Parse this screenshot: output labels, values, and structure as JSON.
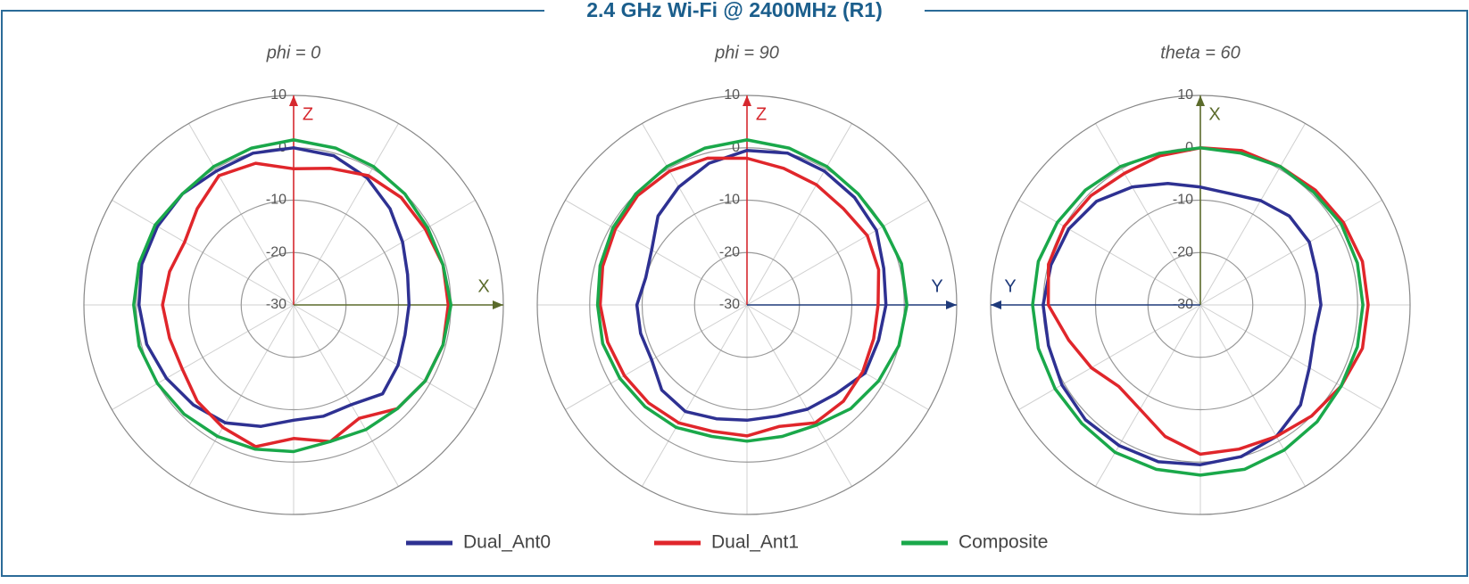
{
  "title": "2.4 GHz Wi-Fi @ 2400MHz (R1)",
  "chart_data": [
    {
      "type": "polar",
      "title": "phi = 0",
      "angles": [
        0,
        15,
        30,
        45,
        60,
        75,
        90,
        105,
        120,
        135,
        150,
        165,
        180,
        195,
        210,
        225,
        240,
        255,
        270,
        285,
        300,
        315,
        330,
        345
      ],
      "rlim": [
        -30,
        10
      ],
      "rticks": [
        10,
        0,
        -10,
        -20,
        -30
      ],
      "grid": true,
      "axes": [
        {
          "label": "Z",
          "color": "#d6282e",
          "direction": 0
        },
        {
          "label": "X",
          "color": "#5b6b2b",
          "direction": 90
        }
      ],
      "series": [
        {
          "name": "Dual_Ant0",
          "color": "#2e3192",
          "values": [
            0,
            -0.5,
            -2,
            -4,
            -6,
            -7.5,
            -8,
            -8,
            -7,
            -6,
            -8,
            -8,
            -8,
            -6,
            -4,
            -3,
            -2,
            -1,
            -0.5,
            0,
            0,
            0,
            -0.5,
            0
          ]
        },
        {
          "name": "Dual_Ant1",
          "color": "#e0262b",
          "values": [
            -4,
            -3,
            -1.5,
            -1,
            -1,
            -0.5,
            -0.5,
            -0.5,
            -1,
            -2,
            -5,
            -3,
            -4.5,
            -2,
            -3,
            -4,
            -5.5,
            -5.5,
            -5,
            -5.5,
            -6,
            -4,
            -1.5,
            -2
          ]
        },
        {
          "name": "Composite",
          "color": "#1aa84a",
          "values": [
            1.5,
            1,
            0.5,
            0,
            -0.5,
            -0.5,
            0,
            -0.5,
            -1,
            -2,
            -2.5,
            -3,
            -2,
            -1.5,
            -1,
            -0.5,
            0,
            0.5,
            0.5,
            0.5,
            0.5,
            0,
            0.5,
            1
          ]
        }
      ]
    },
    {
      "type": "polar",
      "title": "phi = 90",
      "angles": [
        0,
        15,
        30,
        45,
        60,
        75,
        90,
        105,
        120,
        135,
        150,
        165,
        180,
        195,
        210,
        225,
        240,
        255,
        270,
        285,
        300,
        315,
        330,
        345
      ],
      "rlim": [
        -30,
        10
      ],
      "rticks": [
        10,
        0,
        -10,
        -20,
        -30
      ],
      "grid": true,
      "axes": [
        {
          "label": "Z",
          "color": "#d6282e",
          "direction": 0
        },
        {
          "label": "Y",
          "color": "#1f3a7a",
          "direction": 90
        }
      ],
      "series": [
        {
          "name": "Dual_Ant0",
          "color": "#2e3192",
          "values": [
            -0.5,
            0,
            -0.5,
            -1,
            -1.5,
            -3,
            -3.5,
            -4,
            -4,
            -6,
            -7,
            -8,
            -8,
            -7.5,
            -6.5,
            -7,
            -9,
            -9,
            -9,
            -10,
            -9,
            -6,
            -4,
            -2
          ]
        },
        {
          "name": "Dual_Ant1",
          "color": "#e0262b",
          "values": [
            -2,
            -3,
            -3.5,
            -4,
            -3.5,
            -4,
            -5,
            -5,
            -4.5,
            -4,
            -4,
            -6,
            -5,
            -5,
            -4,
            -3.5,
            -3,
            -2.5,
            -2,
            -1.5,
            -1,
            -0.5,
            -0.5,
            -1
          ]
        },
        {
          "name": "Composite",
          "color": "#1aa84a",
          "values": [
            1.5,
            1,
            0.5,
            0,
            0,
            0.5,
            0.5,
            0,
            -1,
            -2,
            -3.5,
            -4,
            -4,
            -4,
            -3,
            -2.5,
            -2,
            -1.5,
            -1.5,
            -1,
            -0.5,
            0,
            0.5,
            1
          ]
        }
      ]
    },
    {
      "type": "polar",
      "title": "theta = 60",
      "angles": [
        0,
        15,
        30,
        45,
        60,
        75,
        90,
        105,
        120,
        135,
        150,
        165,
        180,
        195,
        210,
        225,
        240,
        255,
        270,
        285,
        300,
        315,
        330,
        345
      ],
      "rlim": [
        -30,
        10
      ],
      "rticks": [
        10,
        0,
        -10,
        -20,
        -30
      ],
      "grid": true,
      "axes": [
        {
          "label": "X",
          "color": "#5b6b2b",
          "direction": 0
        },
        {
          "label": "Y",
          "color": "#1f3a7a",
          "direction": 270
        }
      ],
      "series": [
        {
          "name": "Dual_Ant0",
          "color": "#2e3192",
          "values": [
            -7.5,
            -8,
            -7,
            -6,
            -6,
            -7,
            -7,
            -7.5,
            -6,
            -3,
            -1,
            0,
            0.5,
            1,
            1,
            1,
            0.5,
            0,
            0,
            -0.5,
            -1,
            -2,
            -4,
            -6
          ]
        },
        {
          "name": "Dual_Ant1",
          "color": "#e0262b",
          "values": [
            0,
            0.5,
            0.5,
            1,
            1.5,
            2,
            2,
            2,
            1,
            0,
            -1,
            -1.5,
            -1.5,
            -4,
            -7,
            -8,
            -6,
            -4,
            -1,
            0,
            0,
            -0.5,
            -1,
            -0.5
          ]
        },
        {
          "name": "Composite",
          "color": "#1aa84a",
          "values": [
            0,
            0,
            0.5,
            0.5,
            1,
            1,
            1,
            1,
            1,
            1.5,
            2,
            2.5,
            2.5,
            2.5,
            2.5,
            2,
            2,
            2,
            2,
            2,
            1.5,
            1,
            0.5,
            0
          ]
        }
      ]
    }
  ]
}
